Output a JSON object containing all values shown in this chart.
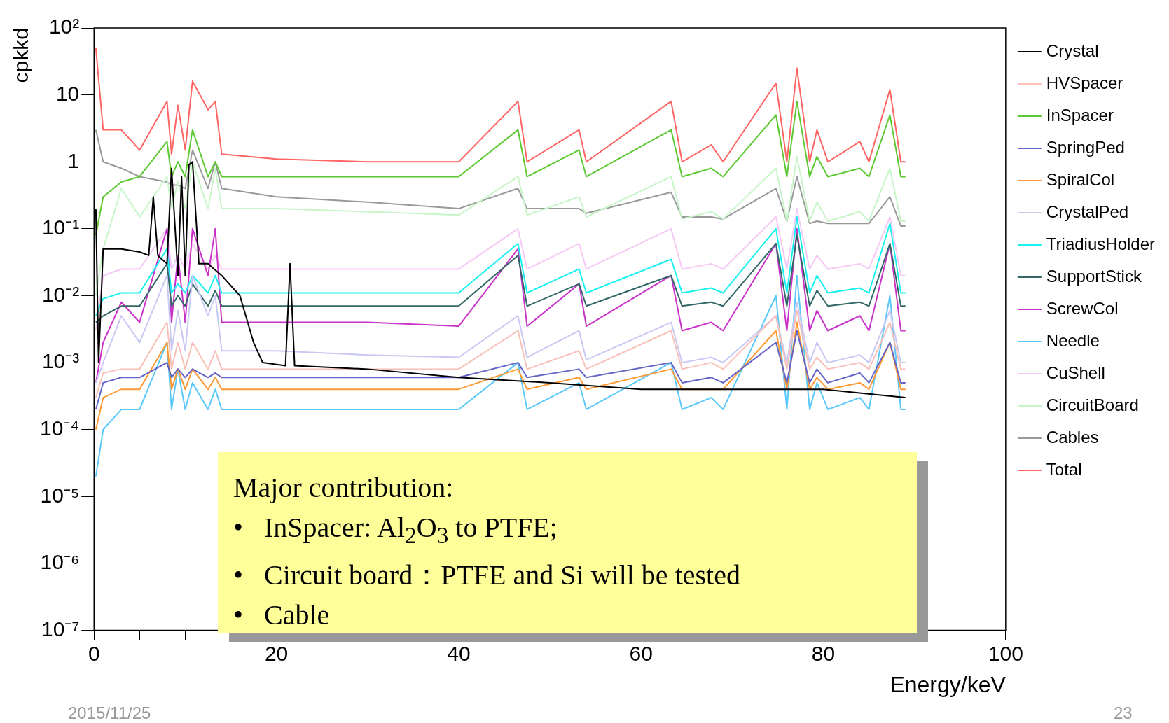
{
  "chart_data": {
    "type": "line",
    "xlabel": "Energy/keV",
    "ylabel": "cpkkd",
    "log": "y",
    "grid": false,
    "legend": "right",
    "marker": "none",
    "line_style": "solid",
    "xlim": [
      0,
      100
    ],
    "xticks": [
      0,
      {
        "value": 5,
        "label": null
      },
      {
        "value": 10,
        "label": null
      },
      {
        "value": 15,
        "label": null
      },
      20,
      {
        "value": 25,
        "label": null
      },
      {
        "value": 30,
        "label": null
      },
      {
        "value": 35,
        "label": null
      },
      40,
      {
        "value": 45,
        "label": null
      },
      {
        "value": 50,
        "label": null
      },
      {
        "value": 55,
        "label": null
      },
      60,
      {
        "value": 65,
        "label": null
      },
      {
        "value": 70,
        "label": null
      },
      {
        "value": 75,
        "label": null
      },
      80,
      {
        "value": 85,
        "label": null
      },
      {
        "value": 90,
        "label": null
      },
      {
        "value": 95,
        "label": null
      },
      100
    ],
    "ylim": [
      1e-07,
      100
    ],
    "yticks": [
      {
        "value": 100,
        "label": "10²"
      },
      10,
      1,
      {
        "value": 0.1,
        "label": "10⁻¹"
      },
      {
        "value": 0.01,
        "label": "10⁻²"
      },
      {
        "value": 0.001,
        "label": "10⁻³"
      },
      {
        "value": 0.0001,
        "label": "10⁻⁴"
      },
      {
        "value": 1e-05,
        "label": "10⁻⁵"
      },
      {
        "value": 1e-06,
        "label": "10⁻⁶"
      },
      {
        "value": 1e-07,
        "label": "10⁻⁷"
      }
    ],
    "x": [
      0.2,
      1,
      3,
      5,
      8,
      8.5,
      9.2,
      10,
      10.8,
      12.5,
      13.3,
      14,
      20,
      30,
      40,
      46.5,
      47.5,
      53.2,
      54,
      63.3,
      64.5,
      67.7,
      69,
      74.8,
      76,
      77.1,
      78.5,
      79.3,
      80.5,
      84,
      85,
      87.3,
      88.5,
      89
    ],
    "series": [
      {
        "name": "Crystal",
        "color": "#000000",
        "x": [
          0.2,
          0.5,
          1,
          2,
          3,
          5,
          6,
          6.5,
          7,
          8,
          8.5,
          9.2,
          9.6,
          10,
          10.4,
          10.8,
          11.5,
          12.5,
          14,
          16,
          17.5,
          18.5,
          21,
          21.5,
          22,
          30,
          40,
          50,
          60,
          70,
          80,
          89
        ],
        "values": [
          0.2,
          0.001,
          0.05,
          0.05,
          0.05,
          0.045,
          0.04,
          0.3,
          0.04,
          0.03,
          0.8,
          0.02,
          0.6,
          0.02,
          0.9,
          1,
          0.03,
          0.03,
          0.02,
          0.01,
          0.002,
          0.001,
          0.0009,
          0.03,
          0.0009,
          0.0008,
          0.0006,
          0.0005,
          0.0004,
          0.0004,
          0.0004,
          0.0003
        ]
      },
      {
        "name": "HVSpacer",
        "color": "#f9c0b8",
        "values": [
          0.0003,
          0.0007,
          0.0008,
          0.0008,
          0.004,
          0.0008,
          0.002,
          0.0008,
          0.002,
          0.0008,
          0.0015,
          0.0008,
          0.0008,
          0.0008,
          0.0008,
          0.003,
          0.0008,
          0.0015,
          0.0008,
          0.003,
          0.0008,
          0.001,
          0.0008,
          0.005,
          0.0008,
          0.006,
          0.0008,
          0.0012,
          0.0008,
          0.001,
          0.0008,
          0.004,
          0.0008,
          0.0008
        ]
      },
      {
        "name": "InSpacer",
        "color": "#5cc832",
        "values": [
          0.08,
          0.3,
          0.5,
          0.6,
          2,
          0.6,
          1,
          0.6,
          3,
          0.6,
          1,
          0.6,
          0.6,
          0.6,
          0.6,
          3,
          0.6,
          1.5,
          0.6,
          3,
          0.6,
          0.8,
          0.6,
          5,
          0.6,
          8,
          0.6,
          1.2,
          0.6,
          0.8,
          0.6,
          5,
          0.6,
          0.6
        ]
      },
      {
        "name": "SpringPed",
        "color": "#6464c8",
        "values": [
          0.0002,
          0.0005,
          0.0006,
          0.0006,
          0.001,
          0.0006,
          0.0008,
          0.0006,
          0.0008,
          0.0006,
          0.0007,
          0.0006,
          0.0006,
          0.0006,
          0.0006,
          0.001,
          0.0006,
          0.0008,
          0.0006,
          0.001,
          0.0005,
          0.0006,
          0.0005,
          0.002,
          0.0005,
          0.003,
          0.0005,
          0.0008,
          0.0005,
          0.0007,
          0.0005,
          0.002,
          0.0005,
          0.0005
        ]
      },
      {
        "name": "SpiralCol",
        "color": "#ff9933",
        "values": [
          0.0001,
          0.0003,
          0.0004,
          0.0004,
          0.002,
          0.0004,
          0.0008,
          0.0004,
          0.0008,
          0.0004,
          0.0006,
          0.0004,
          0.0004,
          0.0004,
          0.0004,
          0.0008,
          0.0004,
          0.0006,
          0.0004,
          0.0008,
          0.0004,
          0.0004,
          0.0004,
          0.003,
          0.0004,
          0.004,
          0.0004,
          0.0006,
          0.0004,
          0.0005,
          0.0004,
          0.002,
          0.0004,
          0.0004
        ]
      },
      {
        "name": "CrystalPed",
        "color": "#c8c8f5",
        "values": [
          0.0005,
          0.001,
          0.005,
          0.002,
          0.02,
          0.0015,
          0.006,
          0.0015,
          0.02,
          0.005,
          0.01,
          0.0015,
          0.0015,
          0.0013,
          0.0012,
          0.005,
          0.0012,
          0.003,
          0.0011,
          0.004,
          0.001,
          0.0012,
          0.001,
          0.005,
          0.001,
          0.008,
          0.001,
          0.002,
          0.001,
          0.0013,
          0.001,
          0.006,
          0.001,
          0.001
        ]
      },
      {
        "name": "TriadiusHolder",
        "color": "#19f0f0",
        "values": [
          0.005,
          0.009,
          0.011,
          0.011,
          0.05,
          0.011,
          0.015,
          0.011,
          0.02,
          0.011,
          0.02,
          0.011,
          0.011,
          0.011,
          0.011,
          0.06,
          0.011,
          0.025,
          0.011,
          0.035,
          0.011,
          0.013,
          0.011,
          0.1,
          0.011,
          0.15,
          0.011,
          0.02,
          0.011,
          0.013,
          0.011,
          0.12,
          0.011,
          0.011
        ]
      },
      {
        "name": "SupportStick",
        "color": "#336666",
        "values": [
          0.004,
          0.005,
          0.007,
          0.007,
          0.03,
          0.007,
          0.01,
          0.007,
          0.015,
          0.007,
          0.012,
          0.007,
          0.007,
          0.007,
          0.007,
          0.04,
          0.007,
          0.015,
          0.007,
          0.02,
          0.007,
          0.008,
          0.007,
          0.06,
          0.007,
          0.08,
          0.007,
          0.012,
          0.007,
          0.008,
          0.007,
          0.06,
          0.007,
          0.007
        ]
      },
      {
        "name": "ScrewCol",
        "color": "#c832c8",
        "values": [
          0.0005,
          0.002,
          0.008,
          0.004,
          0.1,
          0.004,
          0.04,
          0.004,
          0.1,
          0.02,
          0.1,
          0.004,
          0.004,
          0.004,
          0.0035,
          0.05,
          0.0035,
          0.015,
          0.0035,
          0.02,
          0.003,
          0.004,
          0.003,
          0.06,
          0.003,
          0.1,
          0.003,
          0.006,
          0.003,
          0.005,
          0.003,
          0.06,
          0.003,
          0.003
        ]
      },
      {
        "name": "Needle",
        "color": "#5ac8fa",
        "values": [
          2e-05,
          0.0001,
          0.0002,
          0.0002,
          0.002,
          0.0002,
          0.0008,
          0.0002,
          0.0005,
          0.0002,
          0.0004,
          0.0002,
          0.0002,
          0.0002,
          0.0002,
          0.001,
          0.0002,
          0.0005,
          0.0002,
          0.001,
          0.0002,
          0.0003,
          0.0002,
          0.01,
          0.0002,
          0.02,
          0.0002,
          0.0005,
          0.0002,
          0.0003,
          0.0002,
          0.01,
          0.0002,
          0.0002
        ]
      },
      {
        "name": "CuShell",
        "color": "#f5c8f5",
        "values": [
          0.003,
          0.02,
          0.025,
          0.025,
          0.1,
          0.025,
          0.04,
          0.025,
          0.06,
          0.025,
          0.04,
          0.025,
          0.025,
          0.025,
          0.025,
          0.1,
          0.025,
          0.06,
          0.025,
          0.1,
          0.025,
          0.03,
          0.025,
          0.15,
          0.025,
          0.2,
          0.025,
          0.04,
          0.025,
          0.03,
          0.025,
          0.15,
          0.02,
          0.02
        ]
      },
      {
        "name": "CircuitBoard",
        "color": "#c8f5c8",
        "values": [
          0.01,
          0.05,
          0.4,
          0.15,
          0.6,
          0.2,
          0.5,
          0.2,
          1,
          0.2,
          0.8,
          0.2,
          0.2,
          0.18,
          0.16,
          0.6,
          0.16,
          0.3,
          0.15,
          0.6,
          0.14,
          0.18,
          0.14,
          0.8,
          0.13,
          1.2,
          0.13,
          0.25,
          0.13,
          0.18,
          0.13,
          0.8,
          0.13,
          0.13
        ]
      },
      {
        "name": "Cables",
        "color": "#999999",
        "values": [
          3,
          1,
          0.8,
          0.6,
          0.5,
          0.45,
          0.45,
          0.4,
          1.5,
          0.4,
          1,
          0.4,
          0.3,
          0.25,
          0.2,
          0.4,
          0.2,
          0.2,
          0.17,
          0.35,
          0.15,
          0.15,
          0.14,
          0.4,
          0.13,
          0.6,
          0.12,
          0.13,
          0.12,
          0.12,
          0.12,
          0.3,
          0.11,
          0.11
        ]
      },
      {
        "name": "Total",
        "color": "#ff6464",
        "values": [
          50,
          3,
          3,
          1.5,
          8,
          1.3,
          7,
          1.5,
          16,
          6,
          8,
          1.3,
          1.1,
          1,
          1,
          8,
          1,
          3,
          1,
          8,
          1,
          1.8,
          1,
          15,
          1,
          25,
          1,
          3,
          1,
          2,
          1,
          12,
          1,
          1
        ]
      }
    ],
    "annotations": [
      "Major contribution:",
      "•   InSpacer: Al$_{2}$O$_{3}$ to PTFE;",
      "•   Circuit board：PTFE and Si will be tested",
      "•   Cable",
      "2015/11/25",
      "23"
    ]
  }
}
